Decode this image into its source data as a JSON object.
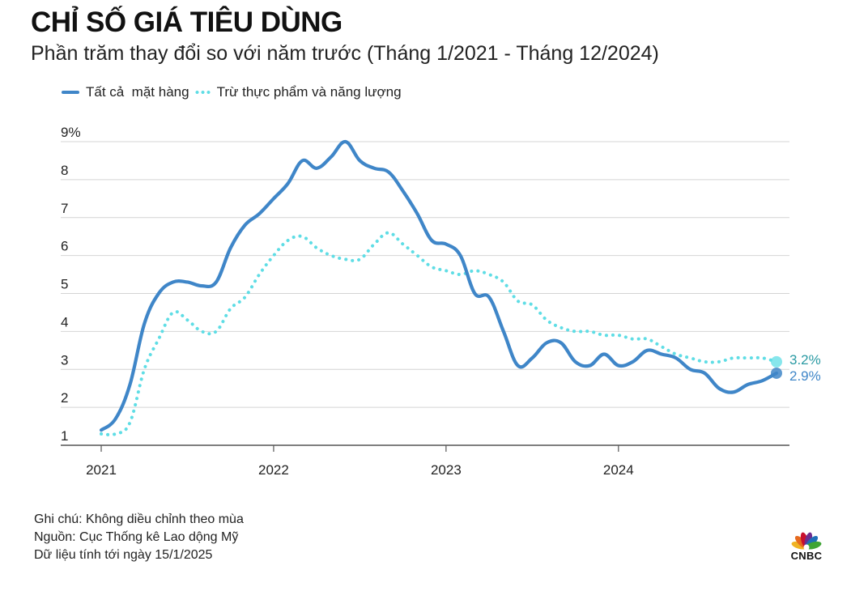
{
  "title": "CHỈ SỐ GIÁ TIÊU DÙNG",
  "subtitle": "Phần trăm thay đổi so với năm trước (Tháng 1/2021 - Tháng 12/2024)",
  "legend": {
    "all_items": "Tất cả  mặt hàng",
    "core": "Trừ thực phẩm và năng lượng"
  },
  "notes": {
    "note": "Ghi chú: Không diều chỉnh theo mùa",
    "source": "Nguồn: Cục Thống kê Lao dộng Mỹ",
    "data_as_of": "Dữ liệu tính tới ngày 15/1/2025"
  },
  "logo": {
    "text": "CNBC"
  },
  "colors": {
    "all_items": "#3f86c8",
    "core": "#5fdde5",
    "core_label": "#2a9aa3",
    "all_label": "#3f86c8",
    "grid": "#d4d4d4",
    "axis": "#555555"
  },
  "chart_data": {
    "type": "line",
    "title": "CHỈ SỐ GIÁ TIÊU DÙNG",
    "subtitle": "Phần trăm thay đổi so với năm trước (Tháng 1/2021 - Tháng 12/2024)",
    "xlabel": "",
    "ylabel": "",
    "ylim": [
      1,
      9
    ],
    "xlim": [
      0,
      47
    ],
    "y_ticks": [
      {
        "value": 1,
        "label": "1"
      },
      {
        "value": 2,
        "label": "2"
      },
      {
        "value": 3,
        "label": "3"
      },
      {
        "value": 4,
        "label": "4"
      },
      {
        "value": 5,
        "label": "5"
      },
      {
        "value": 6,
        "label": "6"
      },
      {
        "value": 7,
        "label": "7"
      },
      {
        "value": 8,
        "label": "8"
      },
      {
        "value": 9,
        "label": "9%"
      }
    ],
    "x_ticks": [
      {
        "value": 0,
        "label": "2021"
      },
      {
        "value": 12,
        "label": "2022"
      },
      {
        "value": 24,
        "label": "2023"
      },
      {
        "value": 36,
        "label": "2024"
      }
    ],
    "grid": true,
    "legend_position": "top-left",
    "categories": [
      "2021-01",
      "2021-02",
      "2021-03",
      "2021-04",
      "2021-05",
      "2021-06",
      "2021-07",
      "2021-08",
      "2021-09",
      "2021-10",
      "2021-11",
      "2021-12",
      "2022-01",
      "2022-02",
      "2022-03",
      "2022-04",
      "2022-05",
      "2022-06",
      "2022-07",
      "2022-08",
      "2022-09",
      "2022-10",
      "2022-11",
      "2022-12",
      "2023-01",
      "2023-02",
      "2023-03",
      "2023-04",
      "2023-05",
      "2023-06",
      "2023-07",
      "2023-08",
      "2023-09",
      "2023-10",
      "2023-11",
      "2023-12",
      "2024-01",
      "2024-02",
      "2024-03",
      "2024-04",
      "2024-05",
      "2024-06",
      "2024-07",
      "2024-08",
      "2024-09",
      "2024-10",
      "2024-11",
      "2024-12"
    ],
    "series": [
      {
        "name": "Tất cả  mặt hàng",
        "style": "solid",
        "values": [
          1.4,
          1.7,
          2.6,
          4.2,
          5.0,
          5.3,
          5.3,
          5.2,
          5.3,
          6.2,
          6.8,
          7.1,
          7.5,
          7.9,
          8.5,
          8.3,
          8.6,
          9.0,
          8.5,
          8.3,
          8.2,
          7.7,
          7.1,
          6.4,
          6.3,
          6.0,
          5.0,
          4.9,
          4.0,
          3.1,
          3.3,
          3.7,
          3.7,
          3.2,
          3.1,
          3.4,
          3.1,
          3.2,
          3.5,
          3.4,
          3.3,
          3.0,
          2.9,
          2.5,
          2.4,
          2.6,
          2.7,
          2.9
        ],
        "end_label": "2.9%"
      },
      {
        "name": "Trừ thực phẩm và năng lượng",
        "style": "dotted",
        "values": [
          1.3,
          1.3,
          1.6,
          3.0,
          3.8,
          4.5,
          4.3,
          4.0,
          4.0,
          4.6,
          4.9,
          5.5,
          6.0,
          6.4,
          6.5,
          6.2,
          6.0,
          5.9,
          5.9,
          6.3,
          6.6,
          6.3,
          6.0,
          5.7,
          5.6,
          5.5,
          5.6,
          5.5,
          5.3,
          4.8,
          4.7,
          4.3,
          4.1,
          4.0,
          4.0,
          3.9,
          3.9,
          3.8,
          3.8,
          3.6,
          3.4,
          3.3,
          3.2,
          3.2,
          3.3,
          3.3,
          3.3,
          3.2
        ],
        "end_label": "3.2%"
      }
    ]
  }
}
